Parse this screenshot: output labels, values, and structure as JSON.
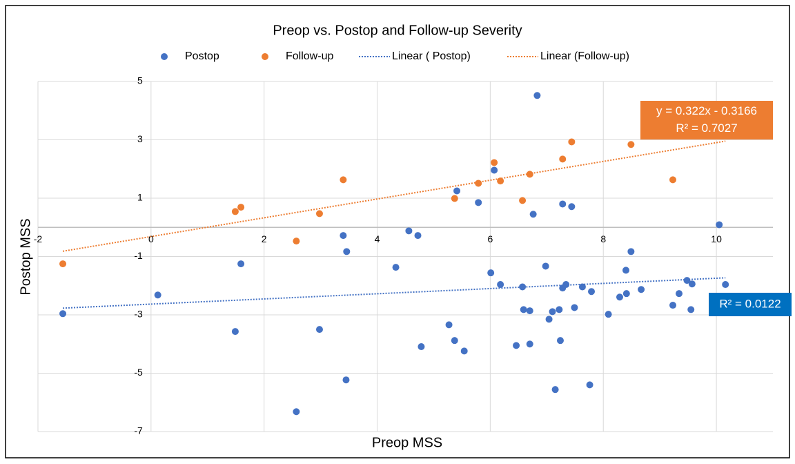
{
  "chart_data": {
    "type": "scatter",
    "title": "Preop vs. Postop and Follow-up Severity",
    "x_label": "Preop MSS",
    "y_label": "Postop MSS",
    "xlim": [
      -2,
      11
    ],
    "xticks": [
      -2,
      0,
      2,
      4,
      6,
      8,
      10
    ],
    "ylim": [
      -7,
      5
    ],
    "yticks": [
      -7,
      -5,
      -3,
      -1,
      1,
      3,
      5
    ],
    "grid": true,
    "legend": "top",
    "series": [
      {
        "name": "Postop",
        "color": "#4472c4",
        "x": [
          -1.56,
          0.12,
          1.49,
          1.59,
          2.57,
          2.98,
          3.4,
          3.46,
          3.45,
          4.33,
          4.56,
          4.72,
          4.78,
          5.27,
          5.37,
          5.41,
          5.54,
          5.79,
          6.01,
          6.07,
          6.18,
          6.46,
          6.57,
          6.59,
          6.7,
          6.7,
          6.76,
          6.83,
          6.98,
          7.04,
          7.1,
          7.15,
          7.22,
          7.24,
          7.28,
          7.28,
          7.34,
          7.44,
          7.49,
          7.63,
          7.76,
          7.79,
          8.09,
          8.29,
          8.4,
          8.41,
          8.49,
          8.67,
          9.23,
          9.34,
          9.48,
          9.55,
          9.57,
          10.05,
          10.16
        ],
        "values": [
          -2.96,
          -2.32,
          -3.57,
          -1.25,
          -6.32,
          -3.5,
          -0.28,
          -0.83,
          -5.23,
          -1.37,
          -0.12,
          -0.28,
          -4.09,
          -3.34,
          -3.88,
          1.25,
          -4.24,
          0.85,
          -1.56,
          1.96,
          -1.96,
          -4.05,
          -2.04,
          -2.82,
          -2.86,
          -4.0,
          0.45,
          4.52,
          -1.33,
          -3.15,
          -2.89,
          -5.56,
          -2.82,
          -3.88,
          0.8,
          -2.08,
          -1.96,
          0.71,
          -2.75,
          -2.04,
          -5.4,
          -2.2,
          -2.98,
          -2.39,
          -1.47,
          -2.27,
          -0.83,
          -2.13,
          -2.67,
          -2.27,
          -1.82,
          -2.82,
          -1.94,
          0.09,
          -1.96
        ]
      },
      {
        "name": "Follow-up",
        "color": "#ed7d31",
        "x": [
          -1.56,
          1.49,
          1.59,
          2.57,
          2.98,
          3.4,
          5.37,
          5.79,
          6.07,
          6.18,
          6.57,
          6.7,
          7.28,
          7.44,
          8.49,
          9.23
        ],
        "values": [
          -1.25,
          0.54,
          0.69,
          -0.47,
          0.47,
          1.63,
          0.99,
          1.51,
          2.22,
          1.59,
          0.92,
          1.82,
          2.34,
          2.93,
          2.84,
          1.63
        ]
      },
      {
        "name": "Linear ( Postop)",
        "type": "line",
        "color": "#4472c4",
        "x": [
          -1.56,
          10.16
        ],
        "values": [
          -2.77,
          -1.73
        ]
      },
      {
        "name": "Linear (Follow-up)",
        "type": "line",
        "color": "#ed7d31",
        "x": [
          -1.56,
          10.16
        ],
        "values": [
          -0.819,
          2.955
        ]
      }
    ],
    "annotations": [
      {
        "lines": [
          "y = 0.322x - 0.3166",
          "R² = 0.7027"
        ],
        "color": "#ed7d31"
      },
      {
        "lines": [
          "R² = 0.0122"
        ],
        "color": "#0070c0"
      }
    ]
  }
}
